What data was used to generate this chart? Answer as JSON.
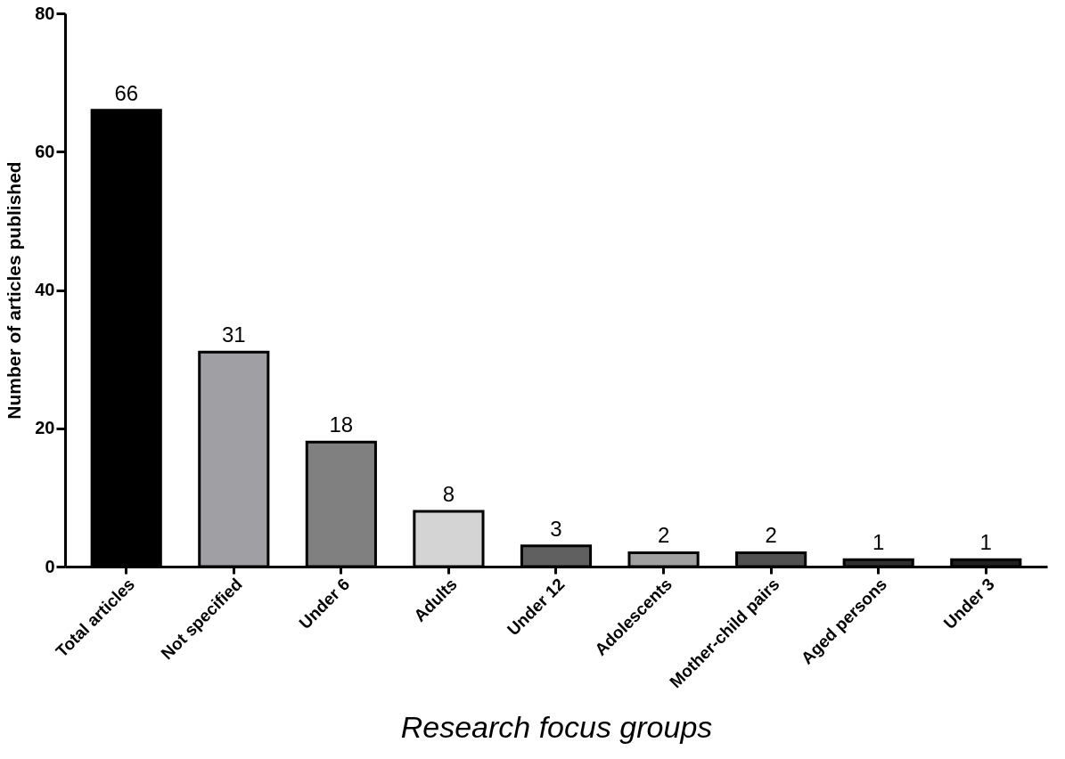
{
  "chart_data": {
    "type": "bar",
    "xlabel": "Research focus groups",
    "ylabel": "Number of articles published",
    "categories": [
      "Total articles",
      "Not specified",
      "Under 6",
      "Adults",
      "Under 12",
      "Adolescents",
      "Mother-child pairs",
      "Aged persons",
      "Under 3"
    ],
    "values": [
      66,
      31,
      18,
      8,
      3,
      2,
      2,
      1,
      1
    ],
    "colors": [
      "#000000",
      "#a0a0a4",
      "#808080",
      "#d4d4d4",
      "#606060",
      "#a0a0a0",
      "#505050",
      "#303030",
      "#202020"
    ],
    "ylim": [
      0,
      80
    ],
    "yticks": [
      0,
      20,
      40,
      60,
      80
    ],
    "data_labels": true,
    "grid": false
  }
}
